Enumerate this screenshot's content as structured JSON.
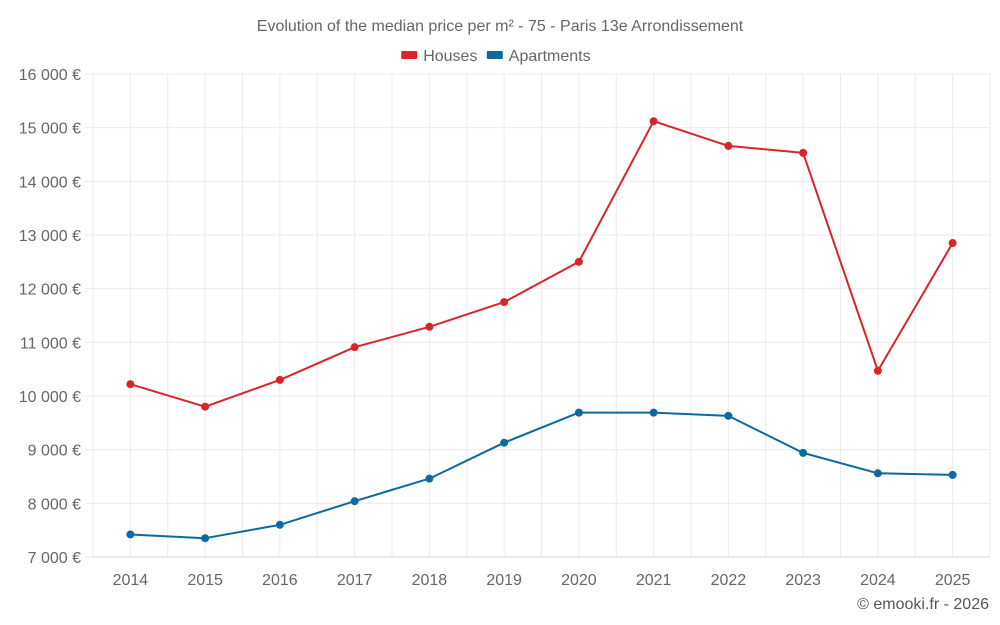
{
  "chart_data": {
    "type": "line",
    "title": "Evolution of the median price per m² - 75 - Paris 13e Arrondissement",
    "xlabel": "",
    "ylabel": "",
    "x": [
      "2014",
      "2015",
      "2016",
      "2017",
      "2018",
      "2019",
      "2020",
      "2021",
      "2022",
      "2023",
      "2024",
      "2025"
    ],
    "ylim": [
      7000,
      16000
    ],
    "yticks": [
      7000,
      8000,
      9000,
      10000,
      11000,
      12000,
      13000,
      14000,
      15000,
      16000
    ],
    "ytick_labels": [
      "7 000 €",
      "8 000 €",
      "9 000 €",
      "10 000 €",
      "11 000 €",
      "12 000 €",
      "13 000 €",
      "14 000 €",
      "15 000 €",
      "16 000 €"
    ],
    "grid": true,
    "legend_position": "top-center",
    "series": [
      {
        "name": "Houses",
        "color": "#d9252a",
        "values": [
          10220,
          9800,
          10300,
          10910,
          11290,
          11750,
          12500,
          15120,
          14660,
          14530,
          10470,
          12850
        ]
      },
      {
        "name": "Apartments",
        "color": "#0a6aa1",
        "values": [
          7420,
          7350,
          7600,
          8040,
          8460,
          9130,
          9690,
          9690,
          9630,
          8940,
          8560,
          8530
        ]
      }
    ]
  },
  "credit": "© emooki.fr - 2026"
}
